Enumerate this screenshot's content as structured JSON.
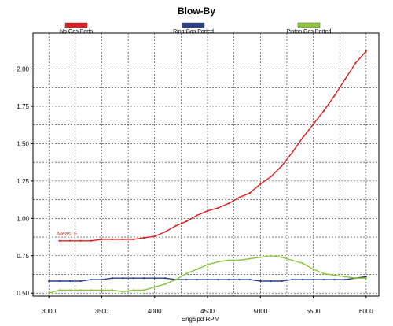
{
  "chart_data": {
    "type": "line",
    "title": "Blow-By",
    "xlabel": "EngSpd RPM",
    "ylabel": "",
    "xlim": [
      2850,
      6120
    ],
    "ylim": [
      0.48,
      2.24
    ],
    "x_ticks": [
      3000,
      3500,
      4000,
      4500,
      5000,
      5500,
      6000
    ],
    "x_tick_labels": [
      "3000",
      "3500",
      "4000",
      "4500",
      "5000",
      "5500",
      "6000"
    ],
    "y_ticks": [
      0.5,
      0.75,
      1.0,
      1.25,
      1.5,
      1.75,
      2.0
    ],
    "y_tick_labels": [
      "0.50",
      "0.75",
      "1.00",
      "1.25",
      "1.50",
      "1.75",
      "2.00"
    ],
    "grid": true,
    "legend_position": "top",
    "annotation": {
      "text": "Meas. F",
      "color": "#e03030"
    },
    "series": [
      {
        "name": "No Gas Ports",
        "color": "#e02020",
        "x": [
          3100,
          3200,
          3300,
          3400,
          3500,
          3600,
          3700,
          3800,
          3900,
          4000,
          4100,
          4200,
          4300,
          4400,
          4500,
          4600,
          4700,
          4800,
          4900,
          5000,
          5100,
          5200,
          5300,
          5400,
          5500,
          5600,
          5700,
          5800,
          5900,
          6000
        ],
        "y": [
          0.85,
          0.85,
          0.85,
          0.85,
          0.86,
          0.86,
          0.86,
          0.86,
          0.87,
          0.88,
          0.91,
          0.95,
          0.98,
          1.02,
          1.05,
          1.07,
          1.1,
          1.14,
          1.17,
          1.23,
          1.28,
          1.35,
          1.44,
          1.54,
          1.63,
          1.72,
          1.82,
          1.93,
          2.04,
          2.12
        ]
      },
      {
        "name": "Ring Gas Ported",
        "color": "#2c3e8c",
        "x": [
          3000,
          3100,
          3200,
          3300,
          3400,
          3500,
          3600,
          3700,
          3800,
          3900,
          4000,
          4100,
          4200,
          4300,
          4400,
          4500,
          4600,
          4700,
          4800,
          4900,
          5000,
          5100,
          5200,
          5300,
          5400,
          5500,
          5600,
          5700,
          5800,
          5900,
          6000
        ],
        "y": [
          0.58,
          0.58,
          0.58,
          0.58,
          0.59,
          0.59,
          0.6,
          0.6,
          0.6,
          0.6,
          0.6,
          0.6,
          0.59,
          0.59,
          0.59,
          0.59,
          0.59,
          0.59,
          0.59,
          0.59,
          0.58,
          0.58,
          0.58,
          0.59,
          0.59,
          0.59,
          0.59,
          0.59,
          0.59,
          0.6,
          0.61
        ]
      },
      {
        "name": "Piston Gas Ported",
        "color": "#8cc43c",
        "x": [
          3000,
          3100,
          3200,
          3300,
          3400,
          3500,
          3600,
          3700,
          3800,
          3900,
          4000,
          4100,
          4200,
          4300,
          4400,
          4500,
          4600,
          4700,
          4800,
          4900,
          5000,
          5100,
          5200,
          5300,
          5400,
          5500,
          5600,
          5700,
          5800,
          5900,
          6000
        ],
        "y": [
          0.5,
          0.52,
          0.52,
          0.52,
          0.52,
          0.52,
          0.52,
          0.51,
          0.52,
          0.52,
          0.54,
          0.56,
          0.59,
          0.63,
          0.66,
          0.69,
          0.71,
          0.72,
          0.72,
          0.73,
          0.74,
          0.75,
          0.74,
          0.72,
          0.7,
          0.66,
          0.63,
          0.62,
          0.61,
          0.6,
          0.6
        ]
      }
    ]
  }
}
